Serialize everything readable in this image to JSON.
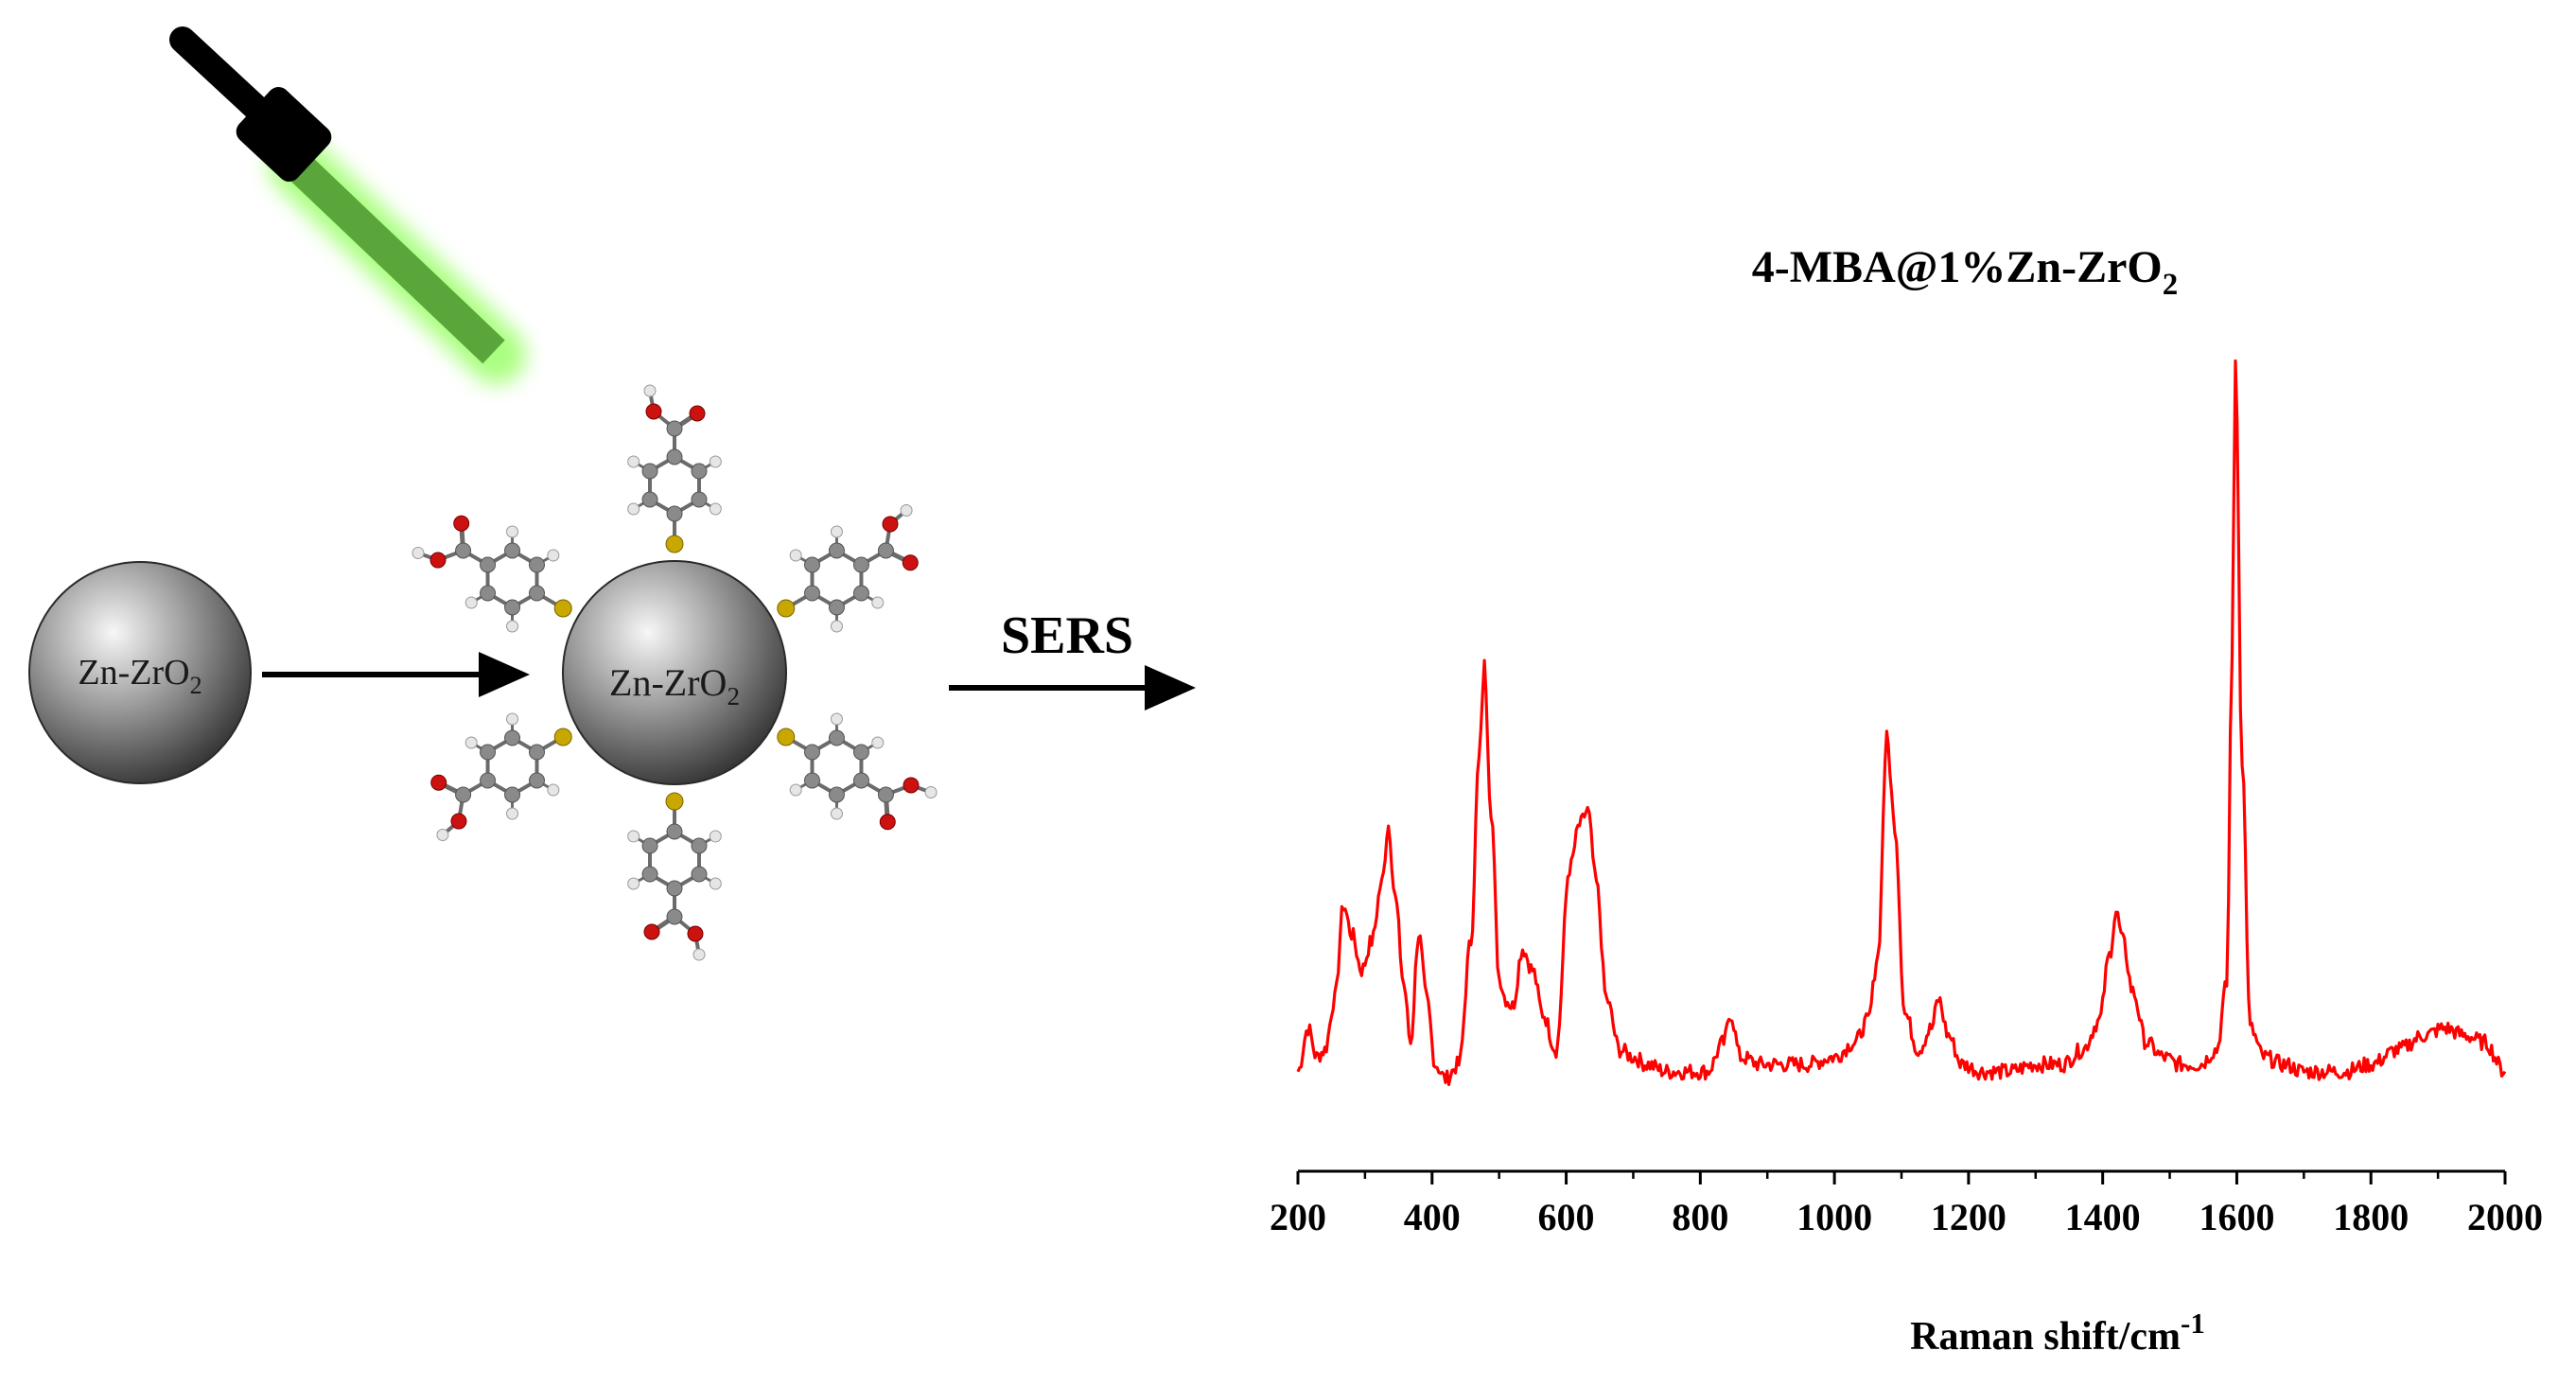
{
  "scheme": {
    "bare_particle_label": "Zn-ZrO",
    "bare_particle_sub": "2",
    "coated_particle_label": "Zn-ZrO",
    "coated_particle_sub": "2",
    "process_label": "SERS",
    "colors": {
      "laser_beam": "#5aa63a",
      "laser_glow": "#8dff55",
      "laser_body": "#000000",
      "sulfur_atom": "#c8a800",
      "carbon_atom": "#8a8a8a",
      "oxygen_atom": "#cc1111",
      "hydrogen_atom": "#e6e6e6",
      "particle_edge": "#2a2a2a"
    },
    "icons": {
      "laser": "laser-pointer-icon",
      "molecule": "4-mba-molecule-icon",
      "arrow": "arrow-right-icon"
    }
  },
  "chart_data": {
    "type": "line",
    "title": "4-MBA@1%Zn-ZrO",
    "title_sub": "2",
    "xlabel": "Raman shift/cm",
    "xlabel_sup": "-1",
    "ylabel": "",
    "xlim": [
      200,
      2000
    ],
    "ylim": [
      0,
      100
    ],
    "x_ticks": [
      "200",
      "400",
      "600",
      "800",
      "1000",
      "1200",
      "1400",
      "1600",
      "1800",
      "2000"
    ],
    "y_axis_visible": false,
    "grid": false,
    "legend": "none",
    "line_color": "#ff0000",
    "series": [
      {
        "x": [
          200,
          215,
          228,
          240,
          255,
          268,
          280,
          295,
          310,
          325,
          335,
          345,
          358,
          368,
          380,
          392,
          405,
          420,
          440,
          458,
          470,
          478,
          488,
          500,
          510,
          520,
          535,
          550,
          565,
          585,
          605,
          620,
          632,
          645,
          660,
          680,
          700,
          720,
          750,
          780,
          810,
          835,
          845,
          860,
          890,
          920,
          960,
          1000,
          1030,
          1050,
          1065,
          1078,
          1090,
          1105,
          1125,
          1145,
          1155,
          1170,
          1190,
          1220,
          1260,
          1300,
          1340,
          1370,
          1395,
          1410,
          1420,
          1430,
          1445,
          1465,
          1490,
          1515,
          1545,
          1570,
          1585,
          1593,
          1598,
          1608,
          1620,
          1640,
          1670,
          1700,
          1730,
          1760,
          1800,
          1840,
          1880,
          1910,
          1940,
          1970,
          2000
        ],
        "y": [
          2,
          8,
          4,
          5,
          12,
          25,
          21,
          16,
          20,
          28,
          36,
          26,
          14,
          6,
          21,
          12,
          3,
          1,
          3,
          20,
          45,
          58,
          38,
          15,
          12,
          11,
          19,
          16,
          10,
          5,
          30,
          36,
          38,
          28,
          12,
          5,
          4,
          3,
          2,
          2,
          2,
          6,
          10,
          4,
          3,
          3,
          3,
          4,
          6,
          9,
          18,
          48,
          36,
          10,
          5,
          8,
          12,
          7,
          3,
          2,
          2,
          3,
          3,
          5,
          9,
          18,
          24,
          20,
          13,
          6,
          4,
          3,
          3,
          5,
          14,
          60,
          100,
          45,
          8,
          4,
          3,
          2,
          2,
          2,
          3,
          5,
          7,
          8,
          7,
          6,
          2
        ]
      }
    ]
  }
}
